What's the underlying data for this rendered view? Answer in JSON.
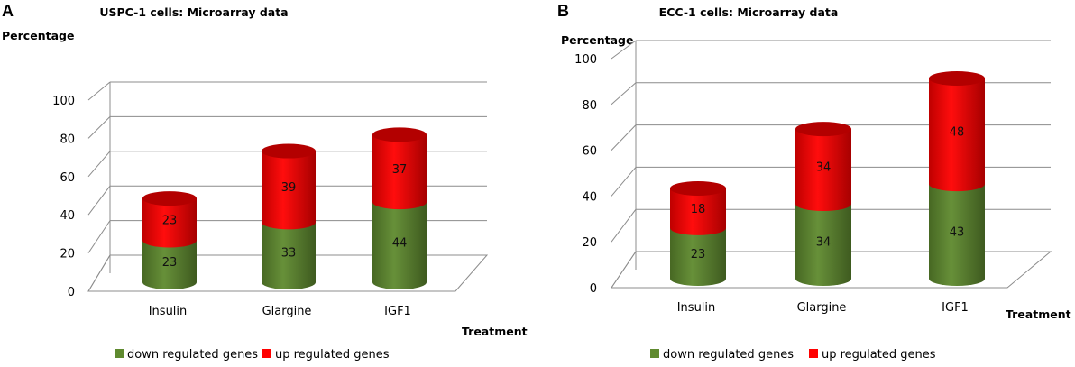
{
  "chart_data": [
    {
      "type": "bar",
      "panel": "A",
      "title": "USPC-1 cells: Microarray data",
      "ylabel": "Percentage",
      "xlabel": "Treatment",
      "ylim": [
        0,
        100
      ],
      "yticks": [
        0,
        20,
        40,
        60,
        80,
        100
      ],
      "categories": [
        "Insulin",
        "Glargine",
        "IGF1"
      ],
      "series": [
        {
          "name": "down regulated genes",
          "color": "#5f8a2f",
          "values": [
            23,
            33,
            44
          ]
        },
        {
          "name": "up regulated genes",
          "color": "#ff0000",
          "values": [
            23,
            39,
            37
          ]
        }
      ]
    },
    {
      "type": "bar",
      "panel": "B",
      "title": "ECC-1 cells: Microarray data",
      "ylabel": "Percentage",
      "xlabel": "Treatment",
      "ylim": [
        0,
        100
      ],
      "yticks": [
        0,
        20,
        40,
        60,
        80,
        100
      ],
      "categories": [
        "Insulin",
        "Glargine",
        "IGF1"
      ],
      "series": [
        {
          "name": "down regulated genes",
          "color": "#5f8a2f",
          "values": [
            23,
            34,
            43
          ]
        },
        {
          "name": "up regulated genes",
          "color": "#ff0000",
          "values": [
            18,
            34,
            48
          ]
        }
      ]
    }
  ]
}
